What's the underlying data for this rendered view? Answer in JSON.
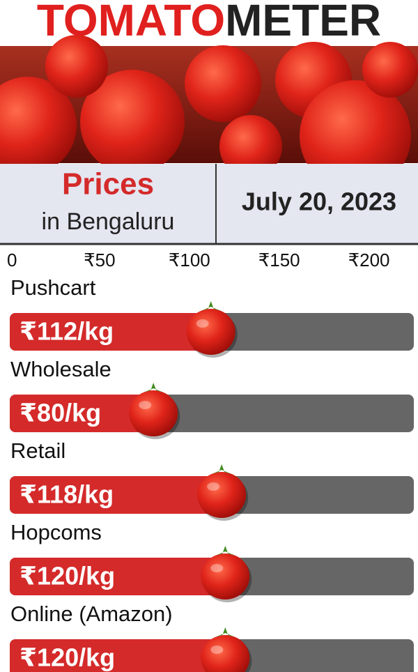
{
  "chart_data": {
    "type": "bar",
    "orientation": "horizontal",
    "title": [
      "TOMATO",
      "METER"
    ],
    "subtitle": [
      "Prices",
      "in Bengaluru"
    ],
    "date": "July 20, 2023",
    "categories": [
      "Pushcart",
      "Wholesale",
      "Retail",
      "Hopcoms",
      "Online (Amazon)"
    ],
    "values": [
      112,
      80,
      118,
      120,
      120
    ],
    "value_labels": [
      "₹112/kg",
      "₹80/kg",
      "₹118/kg",
      "₹120/kg",
      "₹120/kg"
    ],
    "color": "#d42a2a",
    "track_color": "#666666",
    "xlim": [
      0,
      225
    ],
    "xticks": [
      0,
      {
        "value": 50,
        "label": "₹50"
      },
      {
        "value": 100,
        "label": "₹100"
      },
      {
        "value": 150,
        "label": "₹150"
      },
      {
        "value": 200,
        "label": "₹200"
      }
    ]
  }
}
